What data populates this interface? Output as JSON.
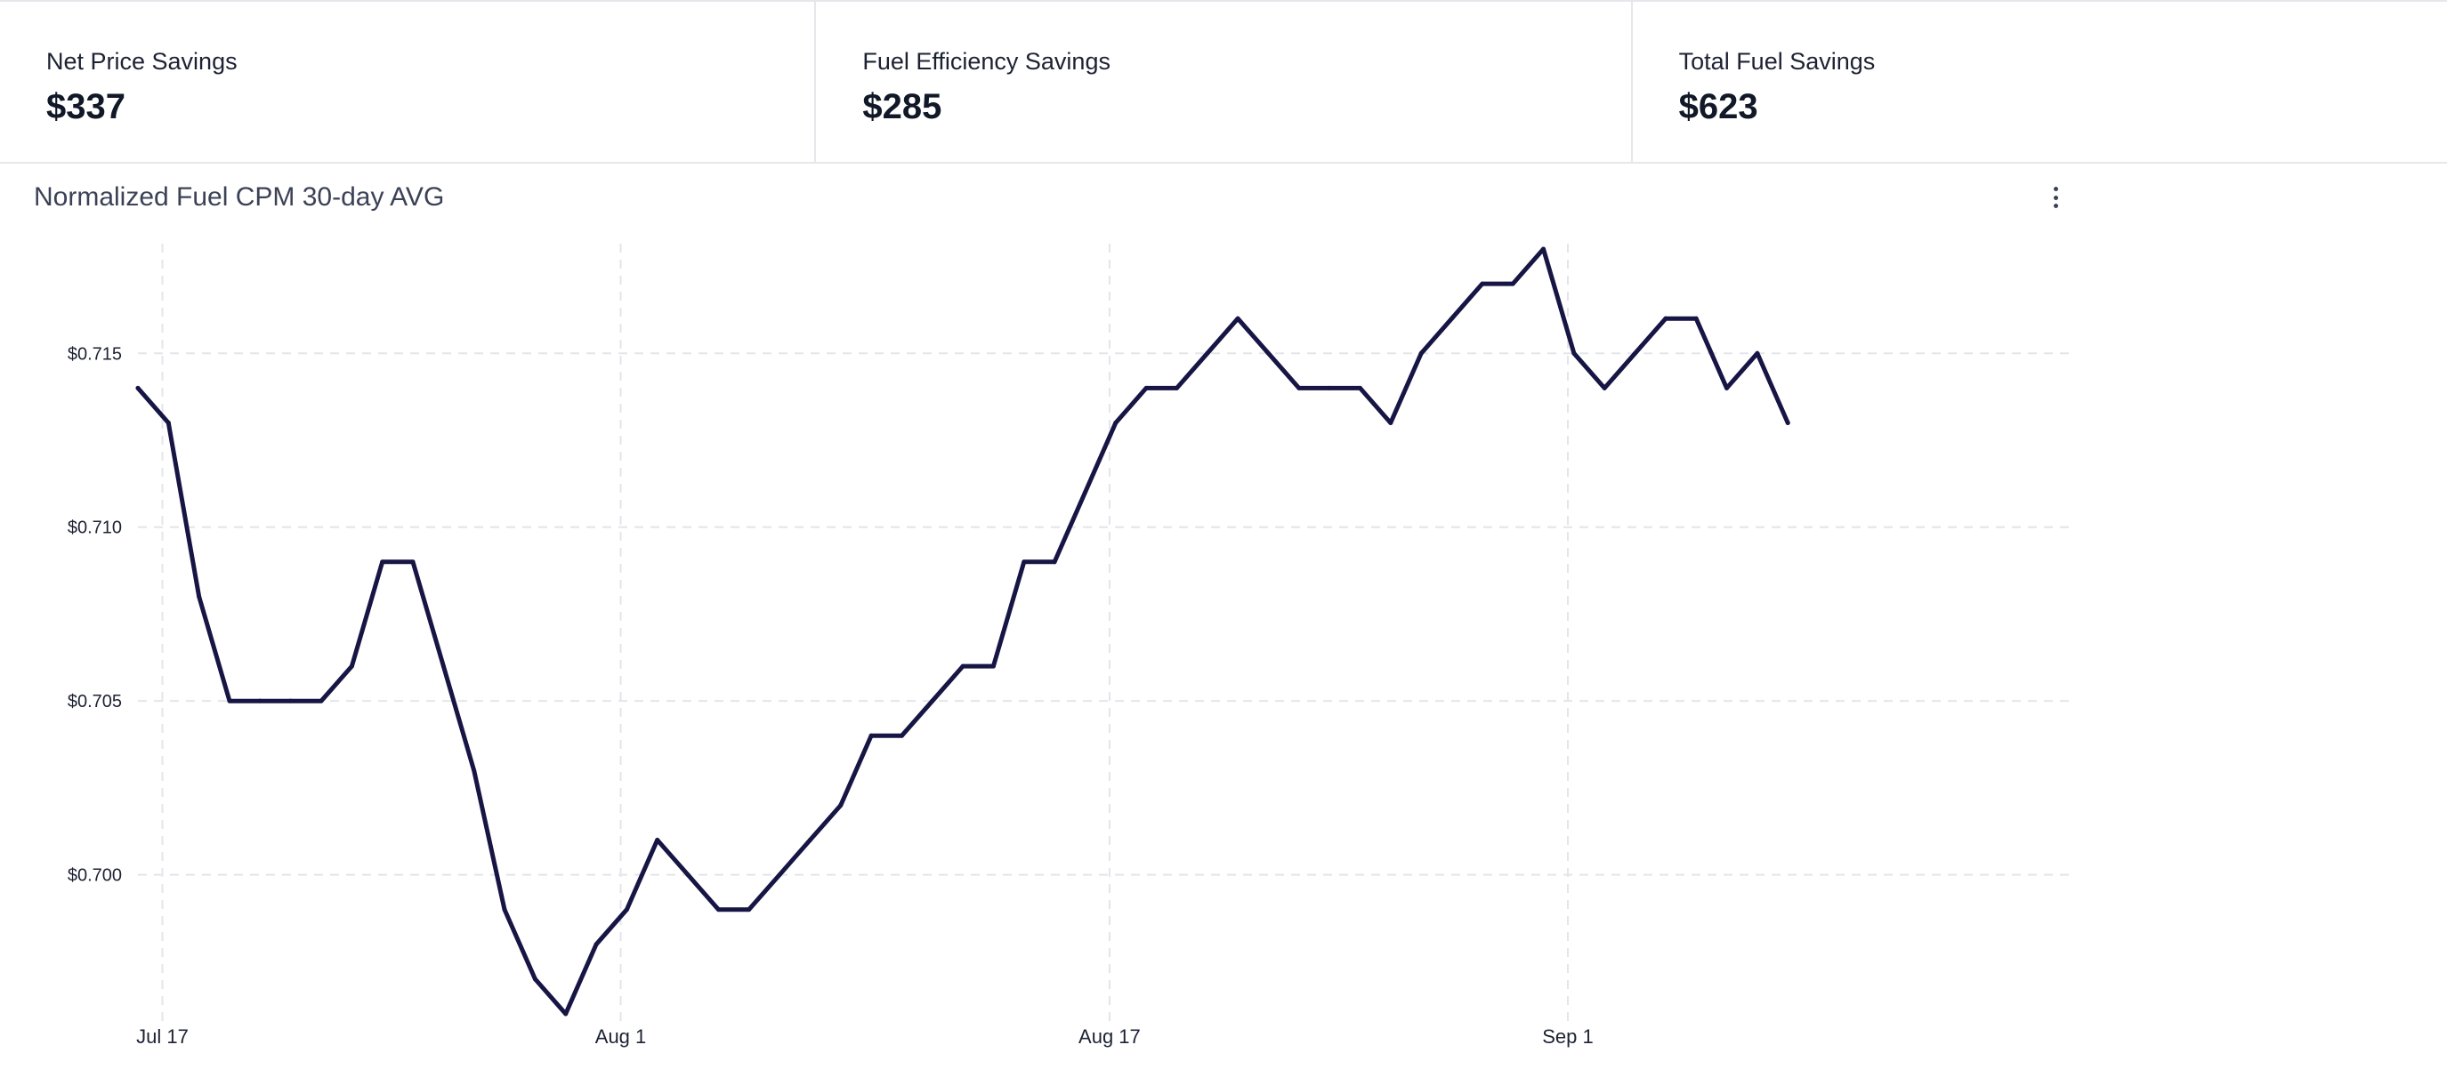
{
  "kpis": [
    {
      "label": "Net Price Savings",
      "value": "$337"
    },
    {
      "label": "Fuel Efficiency Savings",
      "value": "$285"
    },
    {
      "label": "Total Fuel Savings",
      "value": "$623"
    }
  ],
  "chart_header": {
    "title": "Normalized Fuel CPM 30-day AVG",
    "menu_icon": "more-vertical-icon"
  },
  "chart_data": {
    "type": "line",
    "title": "Normalized Fuel CPM 30-day AVG",
    "xlabel": "",
    "ylabel": "",
    "x_ticks": [
      {
        "label": "Jul 17",
        "day": 1
      },
      {
        "label": "Aug 1",
        "day": 16
      },
      {
        "label": "Aug 17",
        "day": 32
      },
      {
        "label": "Sep 1",
        "day": 47
      }
    ],
    "y_ticks": [
      {
        "label": "$0.700",
        "value": 0.7
      },
      {
        "label": "$0.705",
        "value": 0.705
      },
      {
        "label": "$0.710",
        "value": 0.71
      },
      {
        "label": "$0.715",
        "value": 0.715
      }
    ],
    "xlim": [
      0.2,
      58.3
    ],
    "ylim": [
      0.696,
      0.718
    ],
    "grid": true,
    "line_color": "#161544",
    "series": [
      {
        "name": "",
        "points": [
          [
            0.2,
            0.714
          ],
          [
            1.2,
            0.713
          ],
          [
            2.2,
            0.708
          ],
          [
            3.2,
            0.705
          ],
          [
            4.2,
            0.705
          ],
          [
            5.2,
            0.705
          ],
          [
            6.2,
            0.705
          ],
          [
            7.2,
            0.706
          ],
          [
            8.2,
            0.709
          ],
          [
            9.2,
            0.709
          ],
          [
            10.2,
            0.706
          ],
          [
            11.2,
            0.703
          ],
          [
            12.2,
            0.699
          ],
          [
            13.2,
            0.697
          ],
          [
            14.2,
            0.696
          ],
          [
            15.2,
            0.698
          ],
          [
            16.2,
            0.699
          ],
          [
            17.2,
            0.701
          ],
          [
            18.2,
            0.7
          ],
          [
            19.2,
            0.699
          ],
          [
            20.2,
            0.699
          ],
          [
            21.2,
            0.7
          ],
          [
            22.2,
            0.701
          ],
          [
            23.2,
            0.702
          ],
          [
            24.2,
            0.704
          ],
          [
            25.2,
            0.704
          ],
          [
            26.2,
            0.705
          ],
          [
            27.2,
            0.706
          ],
          [
            28.2,
            0.706
          ],
          [
            29.2,
            0.709
          ],
          [
            30.2,
            0.709
          ],
          [
            31.2,
            0.711
          ],
          [
            32.2,
            0.713
          ],
          [
            33.2,
            0.714
          ],
          [
            34.2,
            0.714
          ],
          [
            35.2,
            0.715
          ],
          [
            36.2,
            0.716
          ],
          [
            37.2,
            0.715
          ],
          [
            38.2,
            0.714
          ],
          [
            39.2,
            0.714
          ],
          [
            40.2,
            0.714
          ],
          [
            41.2,
            0.713
          ],
          [
            42.2,
            0.715
          ],
          [
            43.2,
            0.716
          ],
          [
            44.2,
            0.717
          ],
          [
            45.2,
            0.717
          ],
          [
            46.2,
            0.718
          ],
          [
            47.2,
            0.715
          ],
          [
            48.2,
            0.714
          ],
          [
            49.2,
            0.715
          ],
          [
            50.2,
            0.716
          ],
          [
            51.2,
            0.716
          ],
          [
            52.2,
            0.714
          ],
          [
            53.2,
            0.715
          ],
          [
            54.2,
            0.713
          ]
        ]
      }
    ]
  }
}
